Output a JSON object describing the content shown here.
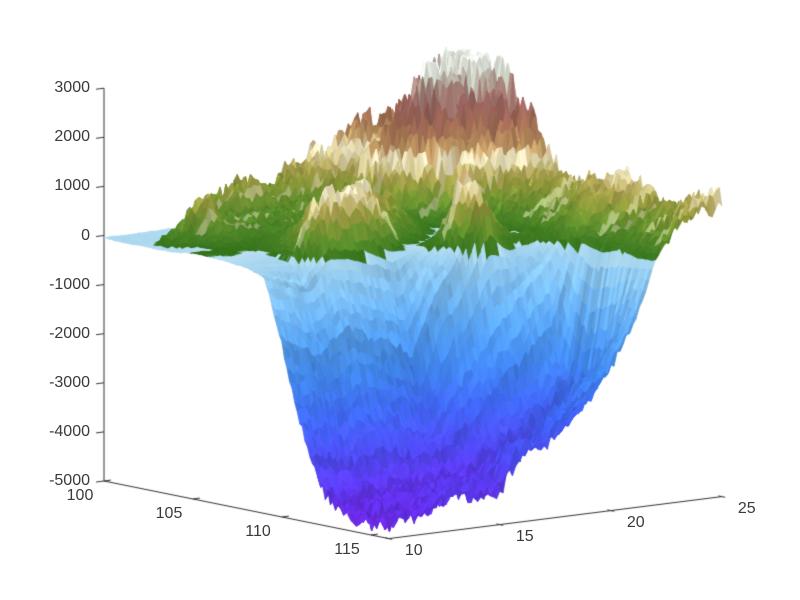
{
  "chart_data": {
    "type": "surface",
    "title": "",
    "description": "3D terrain surface: elevation (m) over longitude 100-116 and latitude 10-25; mountains to ~3000 m, deep sea basin to ~-4700 m",
    "view": {
      "azimuth_deg": -37.5,
      "elevation_deg": 30
    },
    "background": "#ffffff",
    "axis_color": "#333333",
    "tick_label_color": "#3a3a3a",
    "x_axis": {
      "range": [
        100,
        116
      ],
      "tick_values": [
        100,
        105,
        110,
        115
      ],
      "tick_labels": [
        "100",
        "105",
        "110",
        "115"
      ]
    },
    "y_axis": {
      "range": [
        10,
        25
      ],
      "tick_values": [
        10,
        15,
        20,
        25
      ],
      "tick_labels": [
        "10",
        "15",
        "20",
        "25"
      ]
    },
    "z_axis": {
      "range": [
        -5000,
        3000
      ],
      "tick_values": [
        3000,
        2000,
        1000,
        0,
        -1000,
        -2000,
        -3000,
        -4000,
        -5000
      ],
      "tick_labels": [
        "3000",
        "2000",
        "1000",
        "0",
        "-1000",
        "-2000",
        "-3000",
        "-4000",
        "-5000"
      ]
    },
    "colormap": [
      [
        -5000,
        "#7A24DF"
      ],
      [
        -4500,
        "#6430EA"
      ],
      [
        -3800,
        "#4F46F0"
      ],
      [
        -3000,
        "#3F64F2"
      ],
      [
        -2200,
        "#4187F0"
      ],
      [
        -1500,
        "#55A0F2"
      ],
      [
        -800,
        "#77BAF2"
      ],
      [
        -250,
        "#96CDF0"
      ],
      [
        -60,
        "#AAD8F0"
      ],
      [
        -1,
        "#BCE0F2"
      ],
      [
        1,
        "#34741A"
      ],
      [
        200,
        "#4A8326"
      ],
      [
        500,
        "#6C9530"
      ],
      [
        800,
        "#93993C"
      ],
      [
        1000,
        "#B3A657"
      ],
      [
        1150,
        "#D8CD95"
      ],
      [
        1300,
        "#EDE7C8"
      ],
      [
        1450,
        "#C8A267"
      ],
      [
        1700,
        "#A97B55"
      ],
      [
        2000,
        "#9C6554"
      ],
      [
        2300,
        "#97635E"
      ],
      [
        2600,
        "#AC8A80"
      ],
      [
        2800,
        "#C9CEC0"
      ],
      [
        3000,
        "#F2F7F0"
      ]
    ],
    "surface_grid": {
      "lon_start": 100,
      "lon_step": 1,
      "lat_start": 10,
      "lat_step": 1,
      "elevation_m": [
        [
          -50,
          -55,
          -60,
          -60,
          -40,
          5,
          3,
          -30,
          -60,
          -200,
          -1500,
          -3000,
          -4200,
          -4600,
          -4700,
          -4700,
          -4650
        ],
        [
          -45,
          -50,
          -55,
          300,
          -30,
          10,
          5,
          -40,
          -100,
          -400,
          -1800,
          -3200,
          -4300,
          -4650,
          -4700,
          -4650,
          -4600
        ],
        [
          -40,
          -45,
          -50,
          1100,
          250,
          30,
          -20,
          -60,
          -150,
          -600,
          -2000,
          -3400,
          -4400,
          -4650,
          -4600,
          -4550,
          -4500
        ],
        [
          -35,
          20,
          120,
          400,
          200,
          120,
          100,
          500,
          1100,
          -200,
          -1500,
          -3000,
          -4100,
          -4500,
          -4450,
          -4400,
          -4300
        ],
        [
          -30,
          600,
          300,
          250,
          180,
          150,
          200,
          700,
          1300,
          -300,
          -1800,
          -3200,
          -4200,
          -4500,
          -4400,
          -4250,
          -4300
        ],
        [
          -20,
          800,
          250,
          250,
          200,
          150,
          400,
          900,
          1200,
          -500,
          -2000,
          -3400,
          -4300,
          -4400,
          -4300,
          -4200,
          -4300
        ],
        [
          800,
          700,
          250,
          300,
          250,
          200,
          500,
          1200,
          800,
          -700,
          -2300,
          -3500,
          -4300,
          -4400,
          -4200,
          -3600,
          -3500
        ],
        [
          600,
          500,
          300,
          350,
          300,
          250,
          700,
          800,
          -50,
          -70,
          -1000,
          -2800,
          -3800,
          -4200,
          -4000,
          -3500,
          -3600
        ],
        [
          800,
          700,
          400,
          400,
          350,
          300,
          800,
          300,
          -60,
          250,
          -300,
          -2200,
          -3500,
          -4000,
          -3800,
          -3000,
          -2900
        ],
        [
          1000,
          900,
          600,
          500,
          400,
          350,
          200,
          -40,
          -60,
          1400,
          900,
          -1500,
          -3200,
          -3800,
          -3500,
          -2600,
          -2500
        ],
        [
          1200,
          1100,
          900,
          1500,
          800,
          10,
          -30,
          -40,
          -50,
          400,
          200,
          -1000,
          -2800,
          -3500,
          -3200,
          -2200,
          -2100
        ],
        [
          1400,
          1200,
          1000,
          2200,
          1500,
          300,
          -20,
          -40,
          -60,
          -50,
          150,
          -500,
          -2200,
          -3000,
          -2800,
          -1500,
          -1300
        ],
        [
          1600,
          1500,
          1800,
          2800,
          2200,
          1200,
          400,
          100,
          -20,
          -30,
          100,
          200,
          100,
          5,
          150,
          -30,
          -20
        ],
        [
          1700,
          1600,
          2000,
          2600,
          2000,
          1500,
          800,
          500,
          300,
          400,
          500,
          800,
          400,
          200,
          350,
          500,
          600
        ],
        [
          1900,
          2400,
          2900,
          2700,
          2400,
          1800,
          1200,
          800,
          600,
          700,
          800,
          1000,
          700,
          500,
          600,
          800,
          900
        ],
        [
          2100,
          2800,
          3000,
          2900,
          2600,
          2000,
          1400,
          1000,
          800,
          900,
          1000,
          1200,
          900,
          700,
          800,
          1000,
          1100
        ]
      ]
    }
  }
}
